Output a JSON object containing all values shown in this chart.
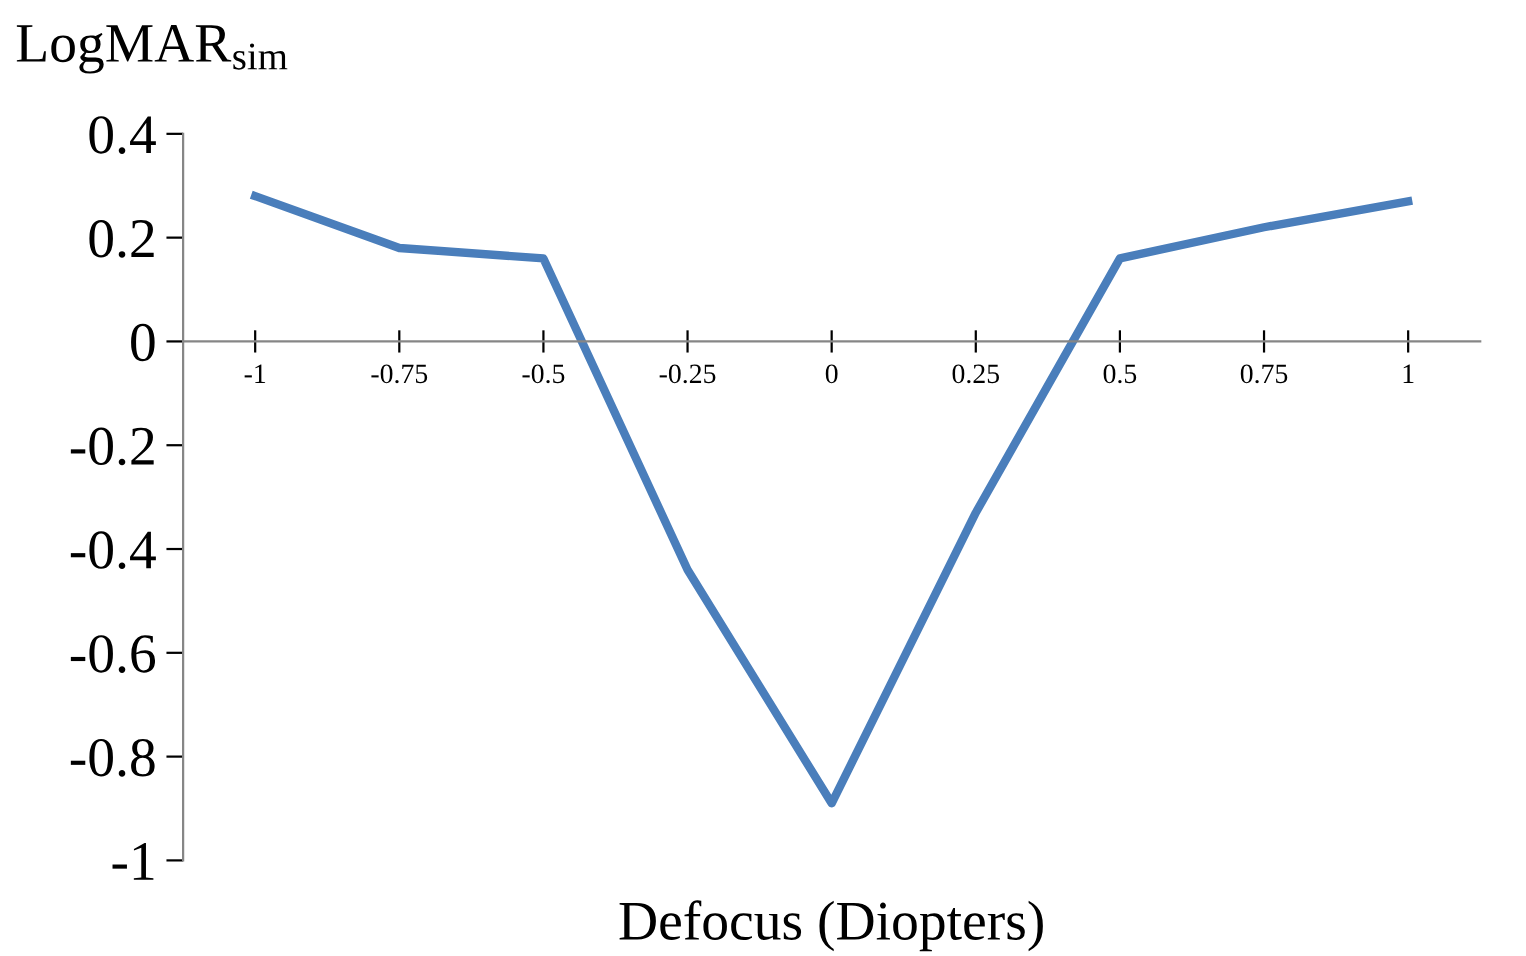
{
  "chart_data": {
    "type": "line",
    "xlabel": "Defocus (Diopters)",
    "ylabel": "LogMAR$_{sim}$",
    "categories": [
      "-1",
      "-0.75",
      "-0.5",
      "-0.25",
      "0",
      "0.25",
      "0.5",
      "0.75",
      "1"
    ],
    "series": [
      {
        "color": "#4a7ebb",
        "values": [
          0.28,
          0.18,
          0.16,
          -0.44,
          -0.89,
          -0.33,
          0.16,
          0.22,
          0.27
        ]
      }
    ],
    "ylim": [
      -1,
      0.4
    ],
    "yticks": [
      -1,
      -0.8,
      -0.6,
      -0.4,
      -0.2,
      0,
      0.2,
      0.4
    ],
    "marker": "none",
    "line_style": "solid"
  }
}
